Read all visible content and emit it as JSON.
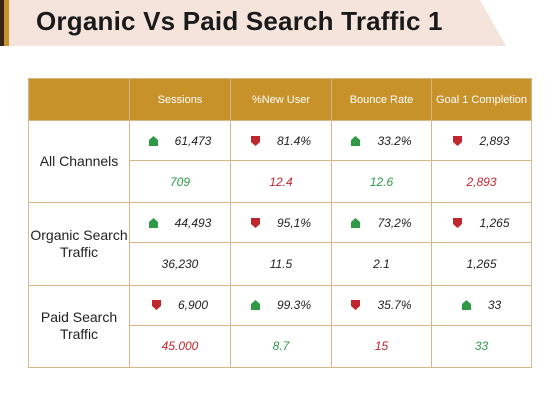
{
  "slide": {
    "title": "Organic Vs Paid Search Traffic 1"
  },
  "table": {
    "columns": [
      "Sessions",
      "%New User",
      "Bounce Rate",
      "Goal 1 Completion"
    ],
    "rows": [
      {
        "label": "All Channels",
        "top": [
          {
            "value": "61,473",
            "icon": "house-up-icon",
            "trend": "up"
          },
          {
            "value": "81.4%",
            "icon": "shield-down-icon",
            "trend": "down"
          },
          {
            "value": "33.2%",
            "icon": "house-up-icon",
            "trend": "up"
          },
          {
            "value": "2,893",
            "icon": "shield-down-icon",
            "trend": "down"
          }
        ],
        "bottom": [
          {
            "value": "709",
            "tone": "green"
          },
          {
            "value": "12.4",
            "tone": "red"
          },
          {
            "value": "12.6",
            "tone": "green"
          },
          {
            "value": "2,893",
            "tone": "red"
          }
        ]
      },
      {
        "label": "Organic Search Traffic",
        "top": [
          {
            "value": "44,493",
            "icon": "house-up-icon",
            "trend": "up"
          },
          {
            "value": "95,1%",
            "icon": "shield-down-icon",
            "trend": "down"
          },
          {
            "value": "73,2%",
            "icon": "house-up-icon",
            "trend": "up"
          },
          {
            "value": "1,265",
            "icon": "shield-down-icon",
            "trend": "down"
          }
        ],
        "bottom": [
          {
            "value": "36,230",
            "tone": "dark"
          },
          {
            "value": "11.5",
            "tone": "dark"
          },
          {
            "value": "2.1",
            "tone": "dark"
          },
          {
            "value": "1,265",
            "tone": "dark"
          }
        ]
      },
      {
        "label": "Paid Search Traffic",
        "top": [
          {
            "value": "6,900",
            "icon": "shield-down-icon",
            "trend": "down"
          },
          {
            "value": "99.3%",
            "icon": "house-up-icon",
            "trend": "up"
          },
          {
            "value": "35.7%",
            "icon": "shield-down-icon",
            "trend": "down"
          },
          {
            "value": "33",
            "icon": "house-up-icon",
            "trend": "up"
          }
        ],
        "bottom": [
          {
            "value": "45.000",
            "tone": "red"
          },
          {
            "value": "8.7",
            "tone": "green"
          },
          {
            "value": "15",
            "tone": "red"
          },
          {
            "value": "33",
            "tone": "green"
          }
        ]
      }
    ]
  },
  "colors": {
    "header": "#c8922a",
    "border": "#d9b58a",
    "up": "#2e9a46",
    "down": "#c0262e",
    "title_band": "#f4e4dc"
  }
}
